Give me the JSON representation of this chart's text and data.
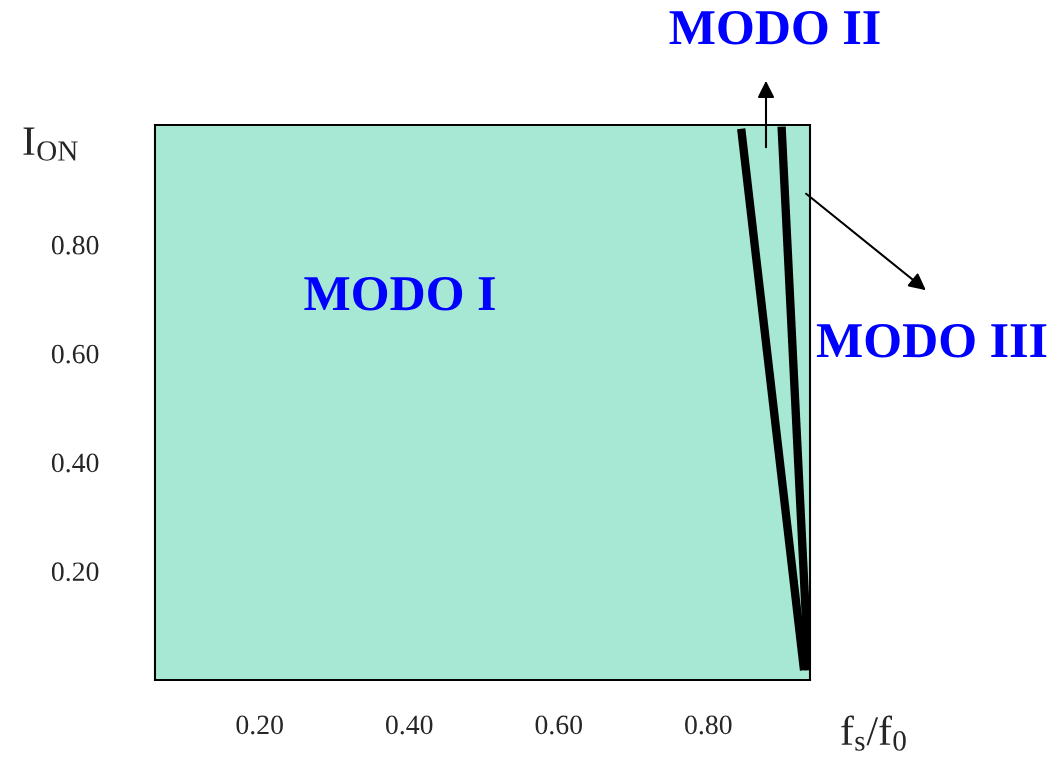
{
  "chart_data": {
    "type": "line",
    "xlabel": "f$_{s}$/f$_{0}$",
    "ylabel": "I$_{ON}$",
    "series": [
      {
        "color": "#000000",
        "x": [
          0.844,
          0.928
        ],
        "values": [
          1.013,
          0.018
        ]
      },
      {
        "color": "#000000",
        "x": [
          0.898,
          0.934
        ],
        "values": [
          1.017,
          0.018
        ]
      }
    ],
    "annotations": [
      "MODO I",
      "MODO II",
      "MODO III"
    ],
    "xlim": [
      0.06,
      0.936
    ],
    "ylim": [
      0,
      1.02
    ],
    "xticks": [
      {
        "value": 0.2,
        "label": "0.20"
      },
      {
        "value": 0.4,
        "label": "0.40"
      },
      {
        "value": 0.6,
        "label": "0.60"
      },
      {
        "value": 0.8,
        "label": "0.80"
      }
    ],
    "yticks": [
      {
        "value": 0.2,
        "label": "0.20"
      },
      {
        "value": 0.4,
        "label": "0.40"
      },
      {
        "value": 0.6,
        "label": "0.60"
      },
      {
        "value": 0.8,
        "label": "0.80"
      }
    ],
    "grid": false,
    "marker": "none",
    "line_style": "solid"
  }
}
